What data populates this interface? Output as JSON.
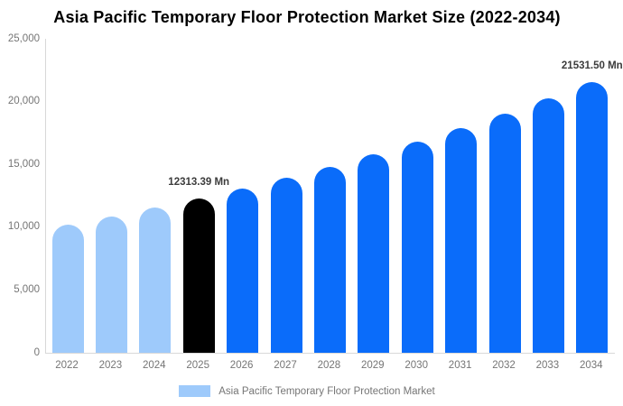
{
  "chart_data": {
    "type": "bar",
    "title": "Asia Pacific Temporary Floor Protection Market Size (2022-2034)",
    "xlabel": "",
    "ylabel": "",
    "unit": "Mn",
    "categories": [
      "2022",
      "2023",
      "2024",
      "2025",
      "2026",
      "2027",
      "2028",
      "2029",
      "2030",
      "2031",
      "2032",
      "2033",
      "2034"
    ],
    "values": [
      10222,
      10876,
      11572,
      12313.39,
      13101,
      13940,
      14832,
      15781,
      16791,
      17866,
      19010,
      20227,
      21531.5
    ],
    "bar_colors": [
      "#9ECAFB",
      "#9ECAFB",
      "#9ECAFB",
      "#000000",
      "#0A6CFA",
      "#0A6CFA",
      "#0A6CFA",
      "#0A6CFA",
      "#0A6CFA",
      "#0A6CFA",
      "#0A6CFA",
      "#0A6CFA",
      "#0A6CFA"
    ],
    "annotations": [
      {
        "category": "2025",
        "index": 3,
        "text": "12313.39 Mn"
      },
      {
        "category": "2034",
        "index": 12,
        "text": "21531.50 Mn"
      }
    ],
    "ylim": [
      0,
      25000
    ],
    "ytick_values": [
      0,
      5000,
      10000,
      15000,
      20000,
      25000
    ],
    "ytick_labels": [
      "0",
      "5,000",
      "10,000",
      "15,000",
      "20,000",
      "25,000"
    ],
    "grid": false,
    "legend": {
      "position": "bottom",
      "label": "Asia Pacific Temporary Floor Protection Market",
      "swatch_color": "#9ECAFB"
    },
    "colors": {
      "highlight_bar": "#000000",
      "historical_bar": "#9ECAFB",
      "forecast_bar": "#0A6CFA",
      "axis_line": "#D8D8D8",
      "tick_text": "#757575",
      "annotation_text": "#3C3C3C",
      "title_text": "#000000"
    }
  }
}
